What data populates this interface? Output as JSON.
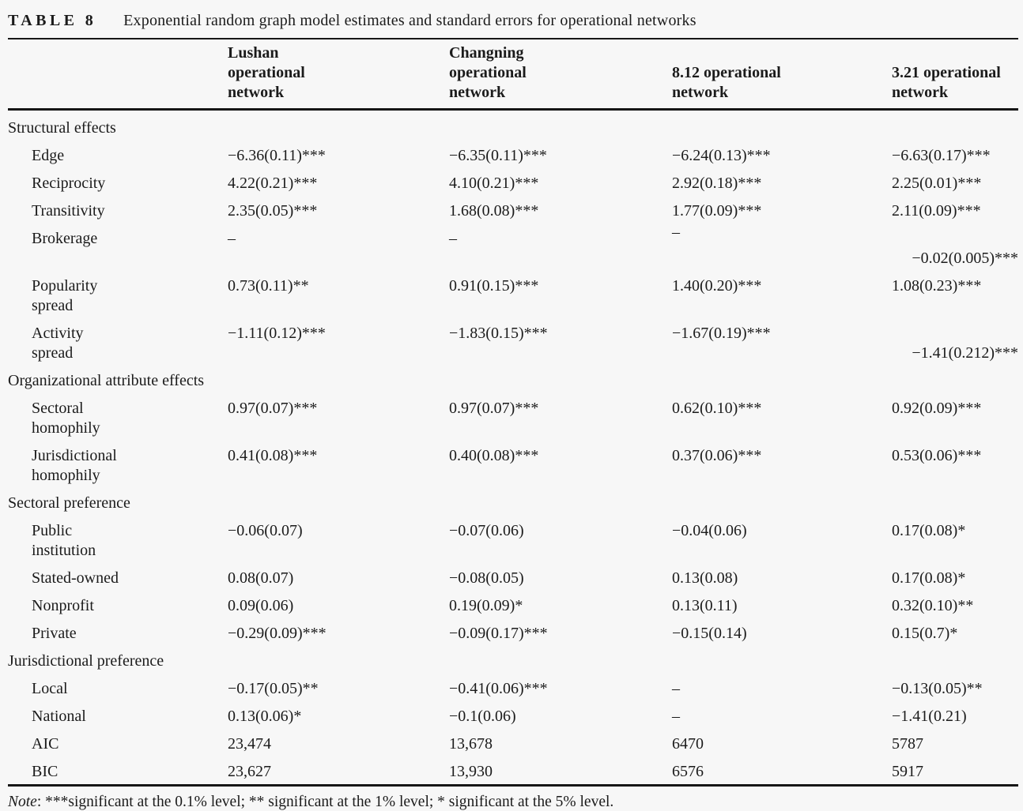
{
  "page": {
    "background": "#f7f7f7",
    "text_color": "#1b1b1b",
    "rule_color": "#161616"
  },
  "caption": {
    "tag": "TABLE 8",
    "title": "Exponential random graph model estimates and standard errors for operational networks"
  },
  "table": {
    "columns": [
      {
        "lines": [
          "Lushan",
          "operational",
          "network"
        ]
      },
      {
        "lines": [
          "Changning",
          "operational",
          "network"
        ]
      },
      {
        "lines": [
          "8.12 operational",
          "network"
        ]
      },
      {
        "lines": [
          "3.21 operational",
          "network"
        ]
      }
    ],
    "rows": [
      {
        "kind": "section",
        "label": "Structural effects"
      },
      {
        "kind": "data",
        "label": "Edge",
        "values": [
          "−6.36(0.11)***",
          "−6.35(0.11)***",
          "−6.24(0.13)***",
          "−6.63(0.17)***"
        ]
      },
      {
        "kind": "data",
        "label": "Reciprocity",
        "values": [
          "4.22(0.21)***",
          "4.10(0.21)***",
          "2.92(0.18)***",
          "2.25(0.01)***"
        ]
      },
      {
        "kind": "data",
        "label": "Transitivity",
        "values": [
          "2.35(0.05)***",
          "1.68(0.08)***",
          "1.77(0.09)***",
          "2.11(0.09)***"
        ]
      },
      {
        "kind": "data",
        "label": "Brokerage",
        "values": [
          "–",
          "–",
          "–",
          ""
        ],
        "overflow": "−0.02(0.005)***"
      },
      {
        "kind": "data",
        "label": "Popularity",
        "label2": "spread",
        "values": [
          "0.73(0.11)**",
          "0.91(0.15)***",
          "1.40(0.20)***",
          "1.08(0.23)***"
        ]
      },
      {
        "kind": "data",
        "label": "Activity",
        "label2": "spread",
        "values": [
          "−1.11(0.12)***",
          "−1.83(0.15)***",
          "−1.67(0.19)***",
          ""
        ],
        "overflow": "−1.41(0.212)***"
      },
      {
        "kind": "section",
        "label": "Organizational attribute effects"
      },
      {
        "kind": "data",
        "label": "Sectoral",
        "label2": "homophily",
        "values": [
          "0.97(0.07)***",
          "0.97(0.07)***",
          "0.62(0.10)***",
          "0.92(0.09)***"
        ]
      },
      {
        "kind": "data",
        "label": "Jurisdictional",
        "label2": "homophily",
        "values": [
          "0.41(0.08)***",
          "0.40(0.08)***",
          "0.37(0.06)***",
          "0.53(0.06)***"
        ]
      },
      {
        "kind": "section",
        "label": "Sectoral preference"
      },
      {
        "kind": "data",
        "label": "Public",
        "label2": "institution",
        "values": [
          "−0.06(0.07)",
          "−0.07(0.06)",
          "−0.04(0.06)",
          "0.17(0.08)*"
        ]
      },
      {
        "kind": "data",
        "label": "Stated-owned",
        "values": [
          "0.08(0.07)",
          "−0.08(0.05)",
          "0.13(0.08)",
          "0.17(0.08)*"
        ]
      },
      {
        "kind": "data",
        "label": "Nonprofit",
        "values": [
          "0.09(0.06)",
          "0.19(0.09)*",
          "0.13(0.11)",
          "0.32(0.10)**"
        ]
      },
      {
        "kind": "data",
        "label": "Private",
        "values": [
          "−0.29(0.09)***",
          "−0.09(0.17)***",
          "−0.15(0.14)",
          "0.15(0.7)*"
        ]
      },
      {
        "kind": "section",
        "label": "Jurisdictional preference"
      },
      {
        "kind": "data",
        "label": "Local",
        "values": [
          "−0.17(0.05)**",
          "−0.41(0.06)***",
          "–",
          "−0.13(0.05)**"
        ]
      },
      {
        "kind": "data",
        "label": "National",
        "values": [
          "0.13(0.06)*",
          "−0.1(0.06)",
          "–",
          "−1.41(0.21)"
        ]
      },
      {
        "kind": "data",
        "label": "AIC",
        "values": [
          "23,474",
          "13,678",
          "6470",
          "5787"
        ]
      },
      {
        "kind": "data",
        "label": "BIC",
        "values": [
          "23,627",
          "13,930",
          "6576",
          "5917"
        ]
      }
    ]
  },
  "note": {
    "label": "Note",
    "text": ": ***significant at the 0.1% level; ** significant at the 1% level; * significant at the 5% level."
  }
}
